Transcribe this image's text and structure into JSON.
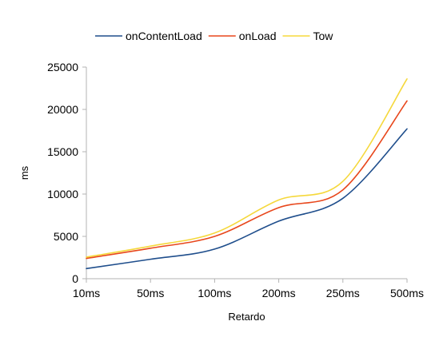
{
  "chart_data": {
    "type": "line",
    "title": "",
    "xlabel": "Retardo",
    "ylabel": "ms",
    "categories": [
      "10ms",
      "50ms",
      "100ms",
      "200ms",
      "250ms",
      "500ms"
    ],
    "ylim": [
      0,
      25000
    ],
    "yticks": [
      0,
      5000,
      10000,
      15000,
      20000,
      25000
    ],
    "ytick_labels": [
      "0",
      "5000",
      "10000",
      "15000",
      "20000",
      "25000"
    ],
    "grid": false,
    "legend": {
      "position": "top"
    },
    "series": [
      {
        "name": "onContentLoad",
        "color": "#1f4e8c",
        "values": [
          1200,
          2300,
          3500,
          6800,
          9500,
          17700
        ]
      },
      {
        "name": "onLoad",
        "color": "#e8471c",
        "values": [
          2400,
          3600,
          5000,
          8400,
          10500,
          21000
        ]
      },
      {
        "name": "Tow",
        "color": "#f5d83b",
        "values": [
          2550,
          3850,
          5400,
          9300,
          11500,
          23600
        ]
      }
    ]
  }
}
